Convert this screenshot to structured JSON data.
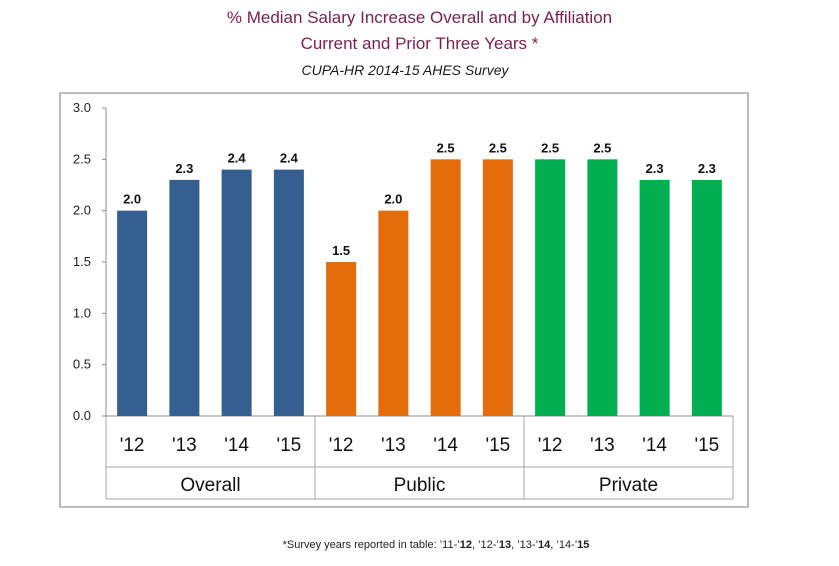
{
  "title": "% Median Salary Increase Overall and by Affiliation",
  "subtitle": "Current and Prior Three Years *",
  "source": "CUPA-HR 2014-15 AHES Survey",
  "footnote": {
    "prefix": "*Survey years reported in table: ",
    "items": [
      {
        "plain": "’11-’",
        "bold": "12"
      },
      {
        "plain": ", ’12-’",
        "bold": "13"
      },
      {
        "plain": ", ’13-’",
        "bold": "14"
      },
      {
        "plain": ", ’14-’",
        "bold": "15"
      }
    ]
  },
  "chart_data": {
    "type": "bar",
    "ylim": [
      0,
      3.0
    ],
    "yticks": [
      "0.0",
      "0.5",
      "1.0",
      "1.5",
      "2.0",
      "2.5",
      "3.0"
    ],
    "groups": [
      {
        "name": "Overall",
        "color": "#345f90",
        "categories": [
          "'12",
          "'13",
          "'14",
          "'15"
        ],
        "values": [
          2.0,
          2.3,
          2.4,
          2.4
        ],
        "labels": [
          "2.0",
          "2.3",
          "2.4",
          "2.4"
        ]
      },
      {
        "name": "Public",
        "color": "#e46c0a",
        "categories": [
          "'12",
          "'13",
          "'14",
          "'15"
        ],
        "values": [
          1.5,
          2.0,
          2.5,
          2.5
        ],
        "labels": [
          "1.5",
          "2.0",
          "2.5",
          "2.5"
        ]
      },
      {
        "name": "Private",
        "color": "#00b050",
        "categories": [
          "'12",
          "'13",
          "'14",
          "'15"
        ],
        "values": [
          2.5,
          2.5,
          2.3,
          2.3
        ],
        "labels": [
          "2.5",
          "2.5",
          "2.3",
          "2.3"
        ]
      }
    ],
    "grid": false,
    "legend": "none"
  }
}
